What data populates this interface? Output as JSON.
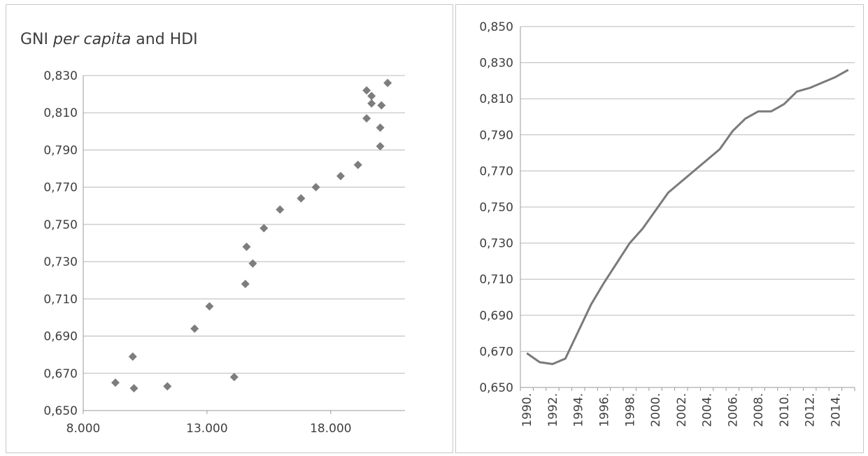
{
  "colors": {
    "marker": "#7d7d7d",
    "line": "#7a7a7a",
    "grid": "#b8b8b8"
  },
  "chart_data": [
    {
      "type": "scatter",
      "title_main": "GNI ",
      "title_italic": "per capita",
      "title_rest": " and HDI",
      "xlabel": "",
      "ylabel": "",
      "xlim": [
        8000,
        21000
      ],
      "ylim": [
        0.65,
        0.83
      ],
      "x_ticks": [
        {
          "v": 8000,
          "label": "8.000"
        },
        {
          "v": 13000,
          "label": "13.000"
        },
        {
          "v": 18000,
          "label": "18.000"
        }
      ],
      "y_ticks": [
        {
          "v": 0.65,
          "label": "0,650"
        },
        {
          "v": 0.67,
          "label": "0,670"
        },
        {
          "v": 0.69,
          "label": "0,690"
        },
        {
          "v": 0.71,
          "label": "0,710"
        },
        {
          "v": 0.73,
          "label": "0,730"
        },
        {
          "v": 0.75,
          "label": "0,750"
        },
        {
          "v": 0.77,
          "label": "0,770"
        },
        {
          "v": 0.79,
          "label": "0,790"
        },
        {
          "v": 0.81,
          "label": "0,810"
        },
        {
          "v": 0.83,
          "label": "0,830"
        }
      ],
      "grid": true,
      "points": [
        {
          "x": 9300,
          "y": 0.665
        },
        {
          "x": 10000,
          "y": 0.679
        },
        {
          "x": 10050,
          "y": 0.662
        },
        {
          "x": 11400,
          "y": 0.663
        },
        {
          "x": 12500,
          "y": 0.694
        },
        {
          "x": 13100,
          "y": 0.706
        },
        {
          "x": 14100,
          "y": 0.668
        },
        {
          "x": 14550,
          "y": 0.718
        },
        {
          "x": 14600,
          "y": 0.738
        },
        {
          "x": 14850,
          "y": 0.729
        },
        {
          "x": 15300,
          "y": 0.748
        },
        {
          "x": 15950,
          "y": 0.758
        },
        {
          "x": 16800,
          "y": 0.764
        },
        {
          "x": 17400,
          "y": 0.77
        },
        {
          "x": 18400,
          "y": 0.776
        },
        {
          "x": 19100,
          "y": 0.782
        },
        {
          "x": 19450,
          "y": 0.807
        },
        {
          "x": 19450,
          "y": 0.822
        },
        {
          "x": 19650,
          "y": 0.819
        },
        {
          "x": 19650,
          "y": 0.815
        },
        {
          "x": 20000,
          "y": 0.792
        },
        {
          "x": 20000,
          "y": 0.802
        },
        {
          "x": 20050,
          "y": 0.814
        },
        {
          "x": 20300,
          "y": 0.826
        }
      ]
    },
    {
      "type": "line",
      "title": "",
      "xlabel": "",
      "ylabel": "",
      "ylim": [
        0.65,
        0.85
      ],
      "y_ticks": [
        {
          "v": 0.65,
          "label": "0,650"
        },
        {
          "v": 0.67,
          "label": "0,670"
        },
        {
          "v": 0.69,
          "label": "0,690"
        },
        {
          "v": 0.71,
          "label": "0,710"
        },
        {
          "v": 0.73,
          "label": "0,730"
        },
        {
          "v": 0.75,
          "label": "0,750"
        },
        {
          "v": 0.77,
          "label": "0,770"
        },
        {
          "v": 0.79,
          "label": "0,790"
        },
        {
          "v": 0.81,
          "label": "0,810"
        },
        {
          "v": 0.83,
          "label": "0,830"
        },
        {
          "v": 0.85,
          "label": "0,850"
        }
      ],
      "x_tick_labels": [
        "1990.",
        "1992.",
        "1994.",
        "1996.",
        "1998.",
        "2000.",
        "2002.",
        "2004.",
        "2006.",
        "2008.",
        "2010.",
        "2012.",
        "2014."
      ],
      "grid": true,
      "x": [
        1990,
        1991,
        1992,
        1993,
        1994,
        1995,
        1996,
        1997,
        1998,
        1999,
        2000,
        2001,
        2002,
        2003,
        2004,
        2005,
        2006,
        2007,
        2008,
        2009,
        2010,
        2011,
        2012,
        2013,
        2014,
        2015
      ],
      "y": [
        0.669,
        0.664,
        0.663,
        0.666,
        0.681,
        0.696,
        0.708,
        0.719,
        0.73,
        0.738,
        0.748,
        0.758,
        0.764,
        0.77,
        0.776,
        0.782,
        0.792,
        0.799,
        0.803,
        0.803,
        0.807,
        0.814,
        0.816,
        0.819,
        0.822,
        0.826
      ]
    }
  ]
}
